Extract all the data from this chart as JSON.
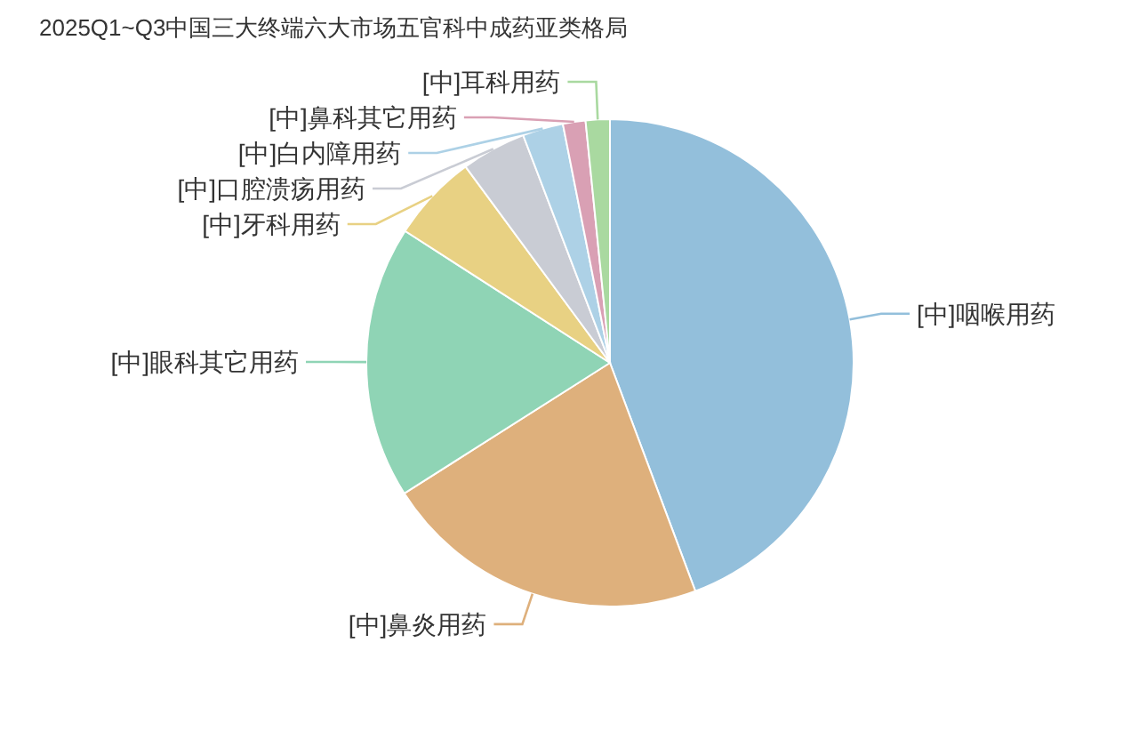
{
  "chart_data": {
    "type": "pie",
    "title": "2025Q1~Q3中国三大终端六大市场五官科中成药亚类格局",
    "categories": [
      "[中]咽喉用药",
      "[中]鼻炎用药",
      "[中]眼科其它用药",
      "[中]牙科用药",
      "[中]口腔溃疡用药",
      "[中]白内障用药",
      "[中]鼻科其它用药",
      "[中]耳科用药"
    ],
    "values": [
      44.3,
      21.7,
      18.1,
      5.8,
      4.3,
      2.7,
      1.5,
      1.6
    ],
    "colors": [
      "#93bfdb",
      "#deb07c",
      "#8fd4b5",
      "#e8d183",
      "#c9ccd4",
      "#add1e6",
      "#d9a0b4",
      "#a9d9a0"
    ]
  }
}
